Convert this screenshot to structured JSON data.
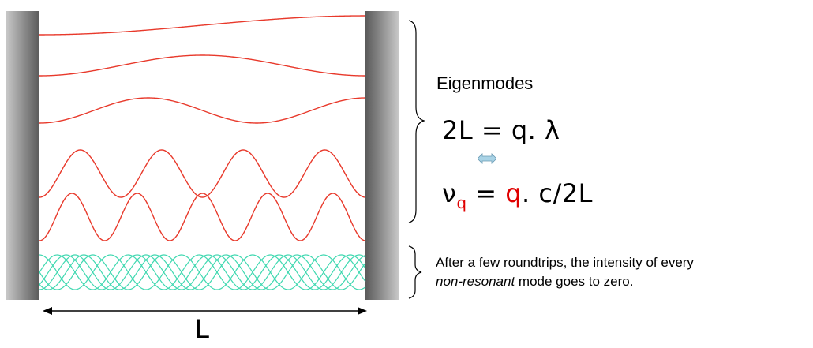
{
  "diagram": {
    "title": "Eigenmodes",
    "equation1": {
      "lhs": "2L",
      "eq": " = ",
      "rhs": "q. λ"
    },
    "equation2": {
      "nu": "ν",
      "sub": "q",
      "eq": " = ",
      "q": "q",
      "rest": ". c/2L"
    },
    "note_line1": "After a few roundtrips, the intensity of every",
    "note_italic": "non-resonant",
    "note_rest": " mode goes to zero.",
    "cavity_length_label": "L",
    "colors": {
      "resonant_mode": "#e8392b",
      "nonresonant_mode": "#3fd8b0",
      "mirror": "#7a7a7a",
      "highlight": "#e00000",
      "equivalence_arrow": "#a9d3e6"
    },
    "resonant_mode_half_periods": [
      1,
      2,
      3,
      8,
      10
    ]
  }
}
